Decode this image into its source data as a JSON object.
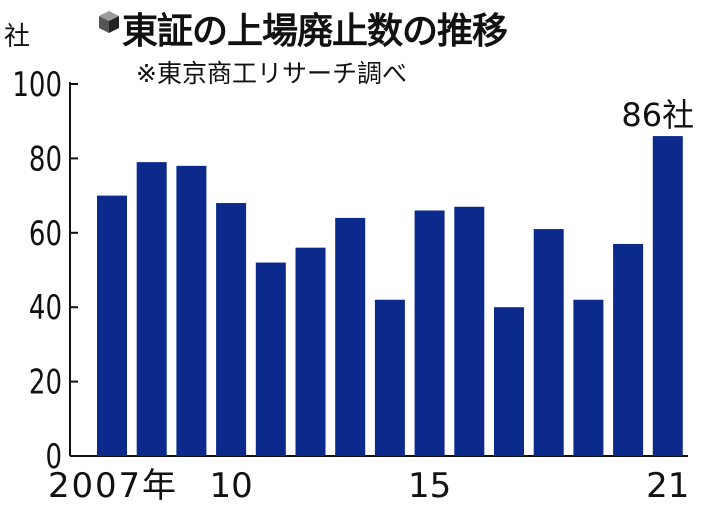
{
  "chart_data": {
    "type": "bar",
    "title": "東証の上場廃止数の推移",
    "subtitle": "※東京商工リサーチ調べ",
    "unit_label": "社",
    "ylim": [
      0,
      100
    ],
    "yticks": [
      "0",
      "20",
      "40",
      "60",
      "80",
      "100"
    ],
    "categories": [
      "2007",
      "2008",
      "2009",
      "2010",
      "2011",
      "2012",
      "2013",
      "2014",
      "2015",
      "2016",
      "2017",
      "2018",
      "2019",
      "2020",
      "2021"
    ],
    "x_tick_labels": [
      {
        "index": 0,
        "text": "2007年"
      },
      {
        "index": 3,
        "text": "10"
      },
      {
        "index": 8,
        "text": "15"
      },
      {
        "index": 14,
        "text": "21"
      }
    ],
    "values": [
      70,
      79,
      78,
      68,
      52,
      56,
      64,
      42,
      66,
      67,
      40,
      61,
      42,
      57,
      86
    ],
    "annotation": {
      "index": 14,
      "text": "86社"
    },
    "bar_color": "#0b2a8c",
    "axis_color": "#111111"
  }
}
